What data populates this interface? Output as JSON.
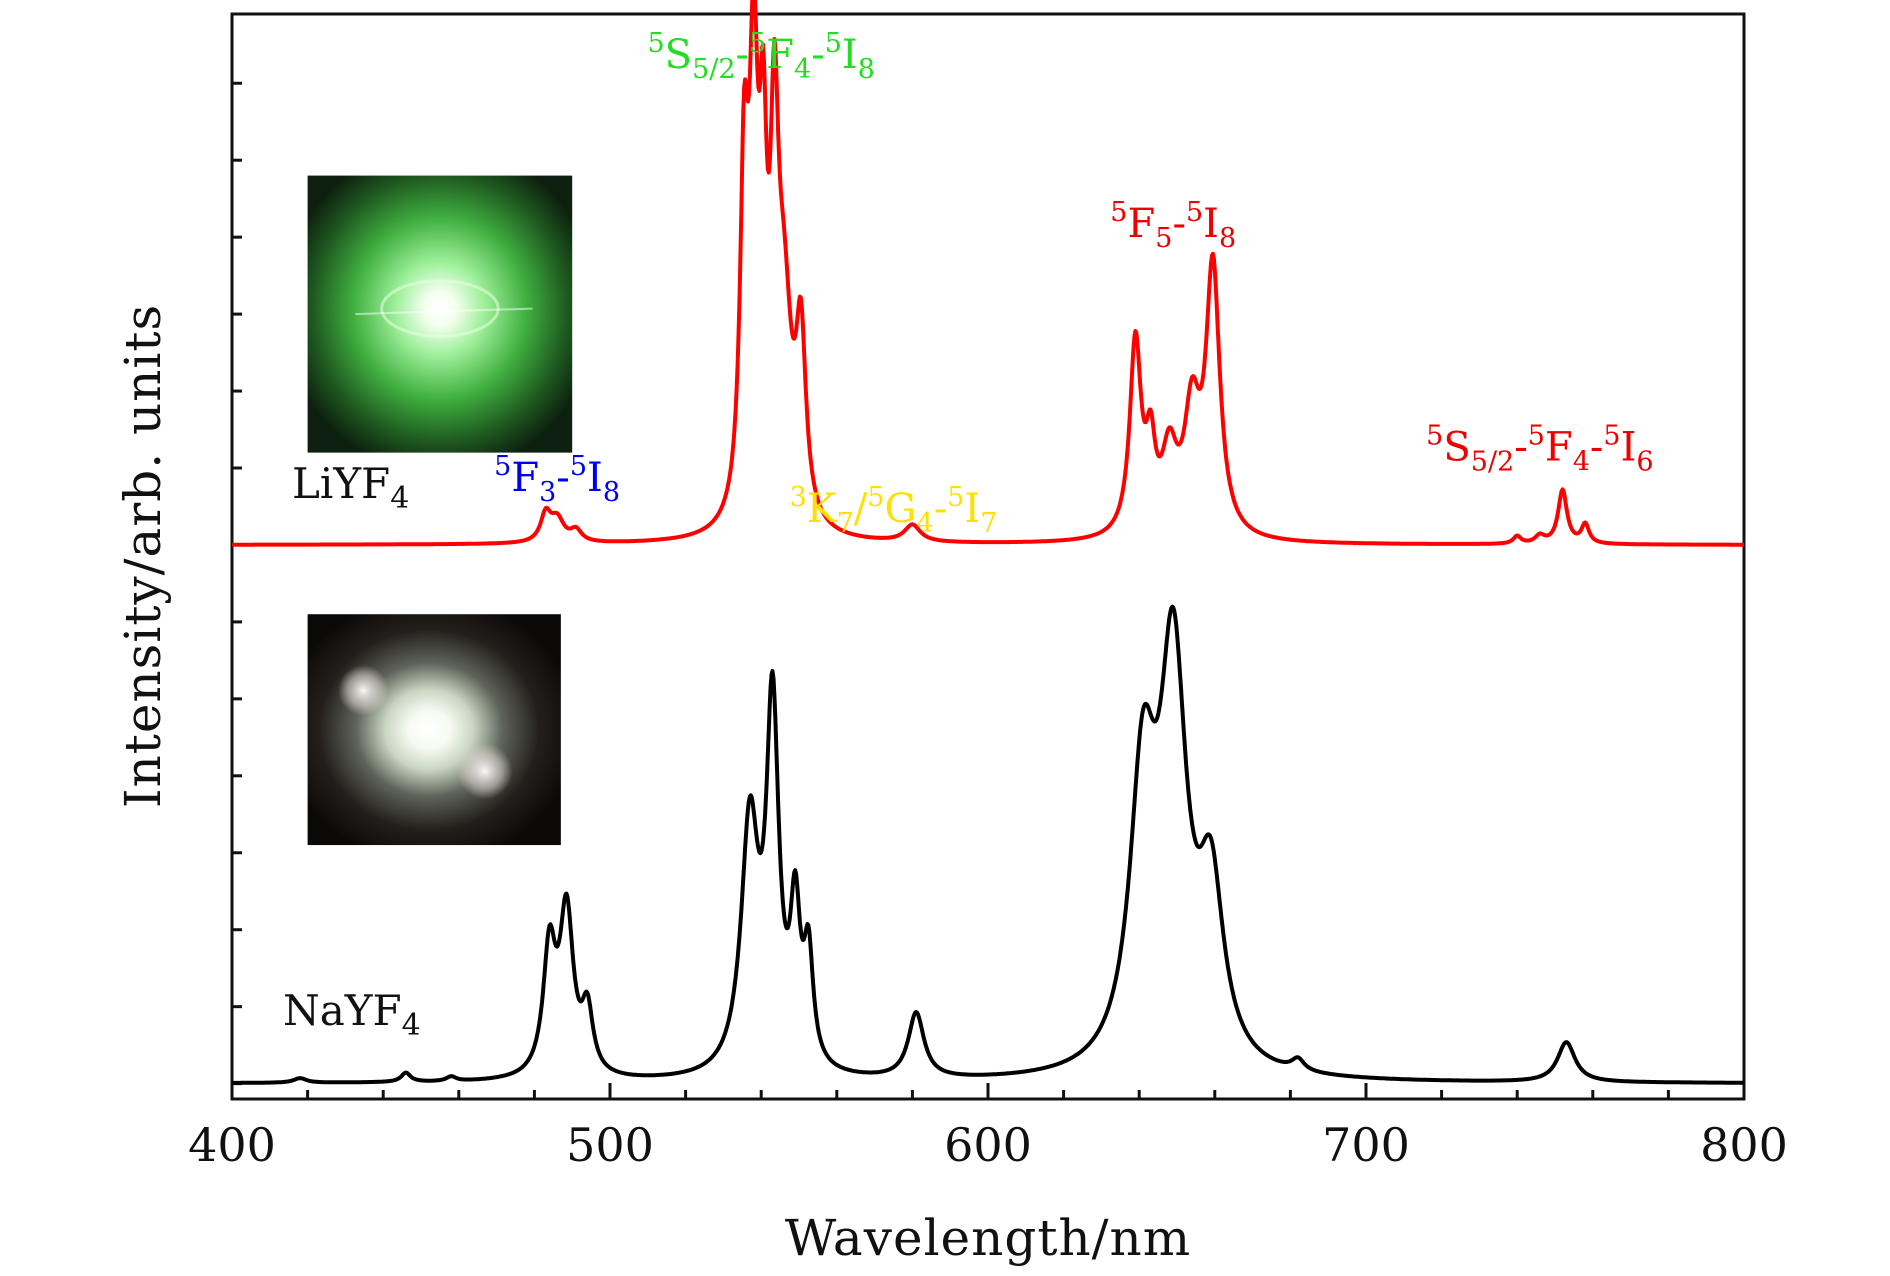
{
  "chart_data": {
    "type": "line",
    "xlabel": "Wavelength/nm",
    "ylabel": "Intensity/arb. units",
    "xlim": [
      400,
      800
    ],
    "ylim": [
      -0.2,
      13.9
    ],
    "x_ticks": [
      400,
      500,
      600,
      700,
      800
    ],
    "x_tick_labels": [
      "400",
      "500",
      "600",
      "700",
      "800"
    ],
    "y_tick_labels_shown": false,
    "grid": false,
    "legend": "none",
    "series": [
      {
        "label": "LiYF",
        "label_sub": "4",
        "color": "#ff0000",
        "baseline": 7.0,
        "peaks": [
          {
            "x": 483,
            "w": 1.6,
            "h": 0.35
          },
          {
            "x": 486,
            "w": 2.2,
            "h": 0.3
          },
          {
            "x": 491,
            "w": 1.8,
            "h": 0.15
          },
          {
            "x": 535.5,
            "w": 1.3,
            "h": 4.2
          },
          {
            "x": 538.0,
            "w": 1.4,
            "h": 5.3
          },
          {
            "x": 540.5,
            "w": 1.2,
            "h": 3.8
          },
          {
            "x": 543.5,
            "w": 1.3,
            "h": 4.2
          },
          {
            "x": 546.0,
            "w": 2.5,
            "h": 2.6
          },
          {
            "x": 550.5,
            "w": 1.6,
            "h": 2.3
          },
          {
            "x": 580,
            "w": 2.5,
            "h": 0.22
          },
          {
            "x": 639,
            "w": 1.8,
            "h": 2.5
          },
          {
            "x": 643,
            "w": 1.5,
            "h": 1.0
          },
          {
            "x": 648,
            "w": 2.5,
            "h": 1.0
          },
          {
            "x": 654,
            "w": 2.5,
            "h": 1.5
          },
          {
            "x": 659.5,
            "w": 2.2,
            "h": 3.45
          },
          {
            "x": 740,
            "w": 1.2,
            "h": 0.1
          },
          {
            "x": 746,
            "w": 1.5,
            "h": 0.1
          },
          {
            "x": 752,
            "w": 1.4,
            "h": 0.7
          },
          {
            "x": 758,
            "w": 1.2,
            "h": 0.25
          }
        ]
      },
      {
        "label": "NaYF",
        "label_sub": "4",
        "color": "#000000",
        "baseline": 0.0,
        "peaks": [
          {
            "x": 418,
            "w": 2.0,
            "h": 0.06
          },
          {
            "x": 446,
            "w": 1.5,
            "h": 0.12
          },
          {
            "x": 458,
            "w": 1.5,
            "h": 0.06
          },
          {
            "x": 484,
            "w": 2.0,
            "h": 1.6
          },
          {
            "x": 488.5,
            "w": 2.2,
            "h": 2.1
          },
          {
            "x": 494,
            "w": 1.8,
            "h": 0.8
          },
          {
            "x": 537,
            "w": 2.8,
            "h": 3.2
          },
          {
            "x": 543,
            "w": 2.0,
            "h": 4.6
          },
          {
            "x": 549,
            "w": 1.6,
            "h": 1.9
          },
          {
            "x": 552.5,
            "w": 1.5,
            "h": 1.4
          },
          {
            "x": 581,
            "w": 2.5,
            "h": 0.85
          },
          {
            "x": 641,
            "w": 4.2,
            "h": 3.6
          },
          {
            "x": 649,
            "w": 4.3,
            "h": 5.1
          },
          {
            "x": 659,
            "w": 4.0,
            "h": 2.2
          },
          {
            "x": 682,
            "w": 2.0,
            "h": 0.15
          },
          {
            "x": 753,
            "w": 2.8,
            "h": 0.52
          }
        ]
      }
    ],
    "annotations": [
      {
        "x": 486,
        "y": 7.7,
        "color": "#0000ee",
        "parts": [
          [
            "sup",
            "5"
          ],
          [
            "t",
            "F"
          ],
          [
            "sub",
            "3"
          ],
          [
            "t",
            "-"
          ],
          [
            "sup",
            "5"
          ],
          [
            "t",
            "I"
          ],
          [
            "sub",
            "8"
          ]
        ]
      },
      {
        "x": 540,
        "y": 13.2,
        "color": "#22dd22",
        "parts": [
          [
            "sup",
            "5"
          ],
          [
            "t",
            "S"
          ],
          [
            "sub",
            "5/2"
          ],
          [
            "t",
            "-"
          ],
          [
            "sup",
            "5"
          ],
          [
            "t",
            "F"
          ],
          [
            "sub",
            "4"
          ],
          [
            "t",
            "-"
          ],
          [
            "sup",
            "5"
          ],
          [
            "t",
            "I"
          ],
          [
            "sub",
            "8"
          ]
        ]
      },
      {
        "x": 575,
        "y": 7.3,
        "color": "#ffe000",
        "parts": [
          [
            "sup",
            "3"
          ],
          [
            "t",
            "K"
          ],
          [
            "sub",
            "7"
          ],
          [
            "t",
            "/"
          ],
          [
            "sup",
            "5"
          ],
          [
            "t",
            "G"
          ],
          [
            "sub",
            "4"
          ],
          [
            "t",
            "-"
          ],
          [
            "sup",
            "5"
          ],
          [
            "t",
            "I"
          ],
          [
            "sub",
            "7"
          ]
        ]
      },
      {
        "x": 649,
        "y": 11.0,
        "color": "#ee0000",
        "parts": [
          [
            "sup",
            "5"
          ],
          [
            "t",
            "F"
          ],
          [
            "sub",
            "5"
          ],
          [
            "t",
            "-"
          ],
          [
            "sup",
            "5"
          ],
          [
            "t",
            "I"
          ],
          [
            "sub",
            "8"
          ]
        ]
      },
      {
        "x": 746,
        "y": 8.1,
        "color": "#ee0000",
        "parts": [
          [
            "sup",
            "5"
          ],
          [
            "t",
            "S"
          ],
          [
            "sub",
            "5/2"
          ],
          [
            "t",
            "-"
          ],
          [
            "sup",
            "5"
          ],
          [
            "t",
            "F"
          ],
          [
            "sub",
            "4"
          ],
          [
            "t",
            "-"
          ],
          [
            "sup",
            "5"
          ],
          [
            "t",
            "I"
          ],
          [
            "sub",
            "6"
          ]
        ]
      }
    ],
    "insets": [
      {
        "name": "liyf4-emission-photo",
        "tone": "green",
        "x0": 420,
        "x1": 490,
        "y0": 8.2,
        "y1": 11.8
      },
      {
        "name": "nayf4-emission-photo",
        "tone": "white",
        "x0": 420,
        "x1": 487,
        "y0": 3.1,
        "y1": 6.1
      }
    ]
  }
}
